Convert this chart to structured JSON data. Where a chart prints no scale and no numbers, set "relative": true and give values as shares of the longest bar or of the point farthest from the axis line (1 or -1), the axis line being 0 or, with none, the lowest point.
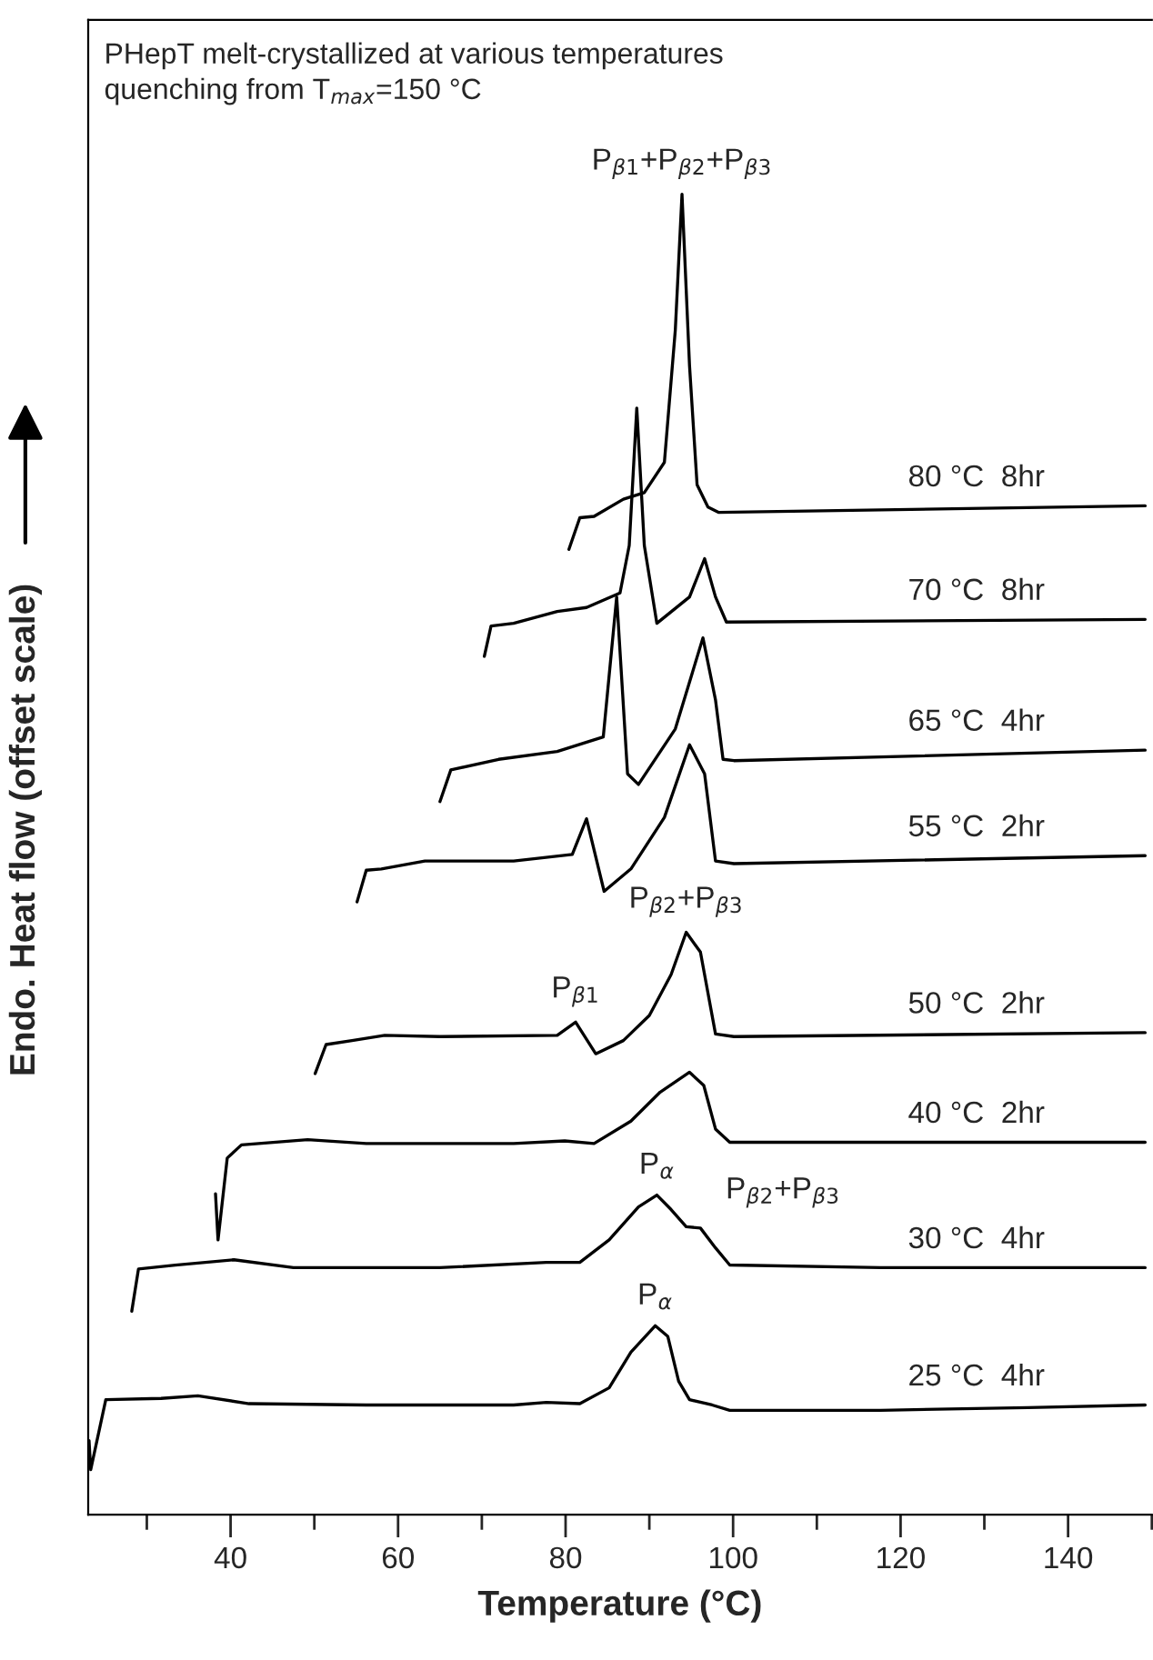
{
  "chart_data": {
    "type": "line",
    "relative": true,
    "title": "PHepT melt-crystallized at various temperatures\nquenching from T$_{max}$=150 °C",
    "xlabel": "Temperature (°C)",
    "ylabel": "Endo. Heat flow (offset scale)",
    "xlim": [
      23,
      150
    ],
    "xticks": [
      {
        "value": 30,
        "label": null
      },
      40,
      {
        "value": 50,
        "label": null
      },
      60,
      {
        "value": 70,
        "label": null
      },
      80,
      {
        "value": 90,
        "label": null
      },
      100,
      {
        "value": 110,
        "label": null
      },
      120,
      {
        "value": 130,
        "label": null
      },
      140,
      {
        "value": 150,
        "label": null
      }
    ],
    "tick_labels": "x",
    "grid": false,
    "legend": false,
    "marker": "none",
    "line_style": "solid",
    "series": [
      {
        "name": "25 °C  4hr",
        "color": "#000000",
        "x": [
          23.1,
          23.3,
          25.1,
          31.7,
          36.1,
          42.2,
          56.2,
          73.8,
          77.7,
          81.7,
          85.2,
          87.8,
          90.7,
          92.2,
          93.5,
          94.8,
          97.5,
          99.6,
          117.6,
          135.2,
          149.2
        ],
        "values": [
          0.056,
          0.034,
          0.087,
          0.088,
          0.09,
          0.084,
          0.083,
          0.083,
          0.085,
          0.084,
          0.096,
          0.123,
          0.143,
          0.135,
          0.101,
          0.087,
          0.083,
          0.079,
          0.079,
          0.081,
          0.083
        ]
      },
      {
        "name": "30 °C  4hr",
        "color": "#000000",
        "x": [
          28.2,
          29.0,
          33.4,
          40.4,
          47.5,
          65.0,
          77.7,
          81.7,
          85.2,
          88.7,
          90.9,
          92.6,
          94.4,
          96.1,
          97.9,
          99.6,
          117.6,
          149.2
        ],
        "values": [
          0.154,
          0.186,
          0.189,
          0.193,
          0.187,
          0.187,
          0.191,
          0.191,
          0.208,
          0.233,
          0.242,
          0.231,
          0.218,
          0.217,
          0.202,
          0.189,
          0.187,
          0.187
        ]
      },
      {
        "name": "40 °C  2hr",
        "color": "#000000",
        "x": [
          38.2,
          38.5,
          39.6,
          41.3,
          49.2,
          56.2,
          73.8,
          79.9,
          83.4,
          87.8,
          91.3,
          94.8,
          96.5,
          97.9,
          99.6,
          149.2
        ],
        "values": [
          0.243,
          0.208,
          0.27,
          0.28,
          0.284,
          0.281,
          0.281,
          0.283,
          0.281,
          0.298,
          0.32,
          0.335,
          0.325,
          0.292,
          0.282,
          0.282
        ]
      },
      {
        "name": "50 °C  2hr",
        "color": "#000000",
        "x": [
          50.1,
          51.4,
          54.5,
          58.4,
          65.0,
          79.0,
          81.2,
          83.6,
          86.9,
          90.0,
          92.6,
          94.4,
          96.1,
          97.9,
          100.1,
          149.2
        ],
        "values": [
          0.334,
          0.356,
          0.359,
          0.363,
          0.362,
          0.363,
          0.373,
          0.349,
          0.359,
          0.378,
          0.409,
          0.441,
          0.426,
          0.364,
          0.362,
          0.365
        ]
      },
      {
        "name": "55 °C  2hr",
        "color": "#000000",
        "x": [
          55.1,
          56.2,
          58.0,
          63.2,
          73.8,
          80.8,
          82.5,
          84.6,
          87.8,
          91.8,
          94.8,
          96.6,
          97.9,
          100.1,
          149.2
        ],
        "values": [
          0.464,
          0.488,
          0.489,
          0.495,
          0.495,
          0.5,
          0.527,
          0.472,
          0.489,
          0.528,
          0.583,
          0.561,
          0.495,
          0.493,
          0.499
        ]
      },
      {
        "name": "65 °C  4hr",
        "color": "#000000",
        "x": [
          65.0,
          66.3,
          72.0,
          79.0,
          84.5,
          86.1,
          87.4,
          88.7,
          93.1,
          96.4,
          97.9,
          98.8,
          100.1,
          149.2
        ],
        "values": [
          0.54,
          0.564,
          0.572,
          0.578,
          0.589,
          0.695,
          0.561,
          0.553,
          0.595,
          0.664,
          0.617,
          0.572,
          0.571,
          0.579
        ]
      },
      {
        "name": "70 °C  8hr",
        "color": "#000000",
        "x": [
          70.3,
          71.1,
          73.8,
          79.0,
          82.5,
          86.5,
          87.6,
          88.5,
          89.4,
          90.9,
          94.8,
          96.6,
          97.9,
          99.2,
          149.2
        ],
        "values": [
          0.65,
          0.673,
          0.675,
          0.684,
          0.687,
          0.698,
          0.734,
          0.838,
          0.734,
          0.675,
          0.695,
          0.724,
          0.695,
          0.676,
          0.678
        ]
      },
      {
        "name": "80 °C  8hr",
        "color": "#000000",
        "x": [
          80.4,
          81.7,
          83.4,
          86.9,
          89.4,
          91.8,
          93.1,
          93.9,
          94.8,
          95.7,
          97.0,
          98.3,
          149.2
        ],
        "values": [
          0.731,
          0.755,
          0.756,
          0.769,
          0.774,
          0.797,
          0.897,
          1.0,
          0.87,
          0.78,
          0.763,
          0.759,
          0.764
        ]
      }
    ],
    "annotations": [
      {
        "text": "P$_{β1}$+P$_{β2}$+P$_{β3}$",
        "x": 93.9,
        "y": 1.0
      },
      {
        "text": "P$_{β1}$",
        "x": 81.2,
        "y": 0.373
      },
      {
        "text": "P$_{β2}$+P$_{β3}$",
        "x": 94.4,
        "y": 0.441
      },
      {
        "text": "P$_{α}$",
        "x": 90.9,
        "y": 0.242
      },
      {
        "text": "P$_{β2}$+P$_{β3}$",
        "x": 96.1,
        "y": 0.217
      },
      {
        "text": "P$_{α}$",
        "x": 90.7,
        "y": 0.143
      }
    ]
  }
}
